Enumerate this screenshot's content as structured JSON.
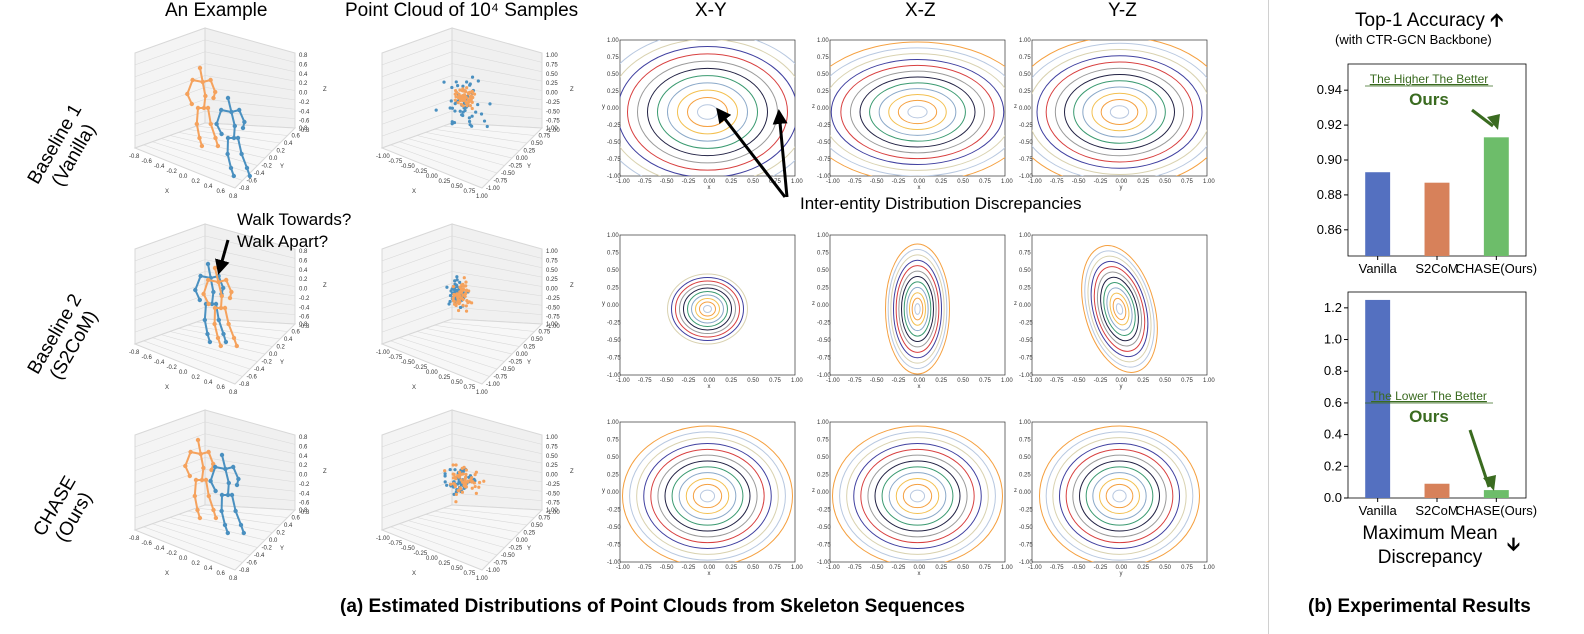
{
  "column_headers": {
    "example": "An Example",
    "pointcloud": "Point Cloud of 10⁴ Samples",
    "xy": "X-Y",
    "xz": "X-Z",
    "yz": "Y-Z"
  },
  "row_labels": [
    {
      "line1": "Baseline 1",
      "line2": "(Vanilla)"
    },
    {
      "line1": "Baseline 2",
      "line2": "(S2CoM)"
    },
    {
      "line1": "CHASE",
      "line2": "(Ours)"
    }
  ],
  "annotations": {
    "walk_1": "Walk Towards?",
    "walk_2": "Walk Apart?",
    "discrepancy": "Inter-entity Distribution Discrepancies",
    "higher_better": "The Higher The Better",
    "lower_better": "The Lower The Better",
    "ours": "Ours"
  },
  "axes3d": {
    "skeleton_ticks": [
      "-0.8",
      "-0.6",
      "-0.4",
      "-0.2",
      "0.0",
      "0.2",
      "0.4",
      "0.6",
      "0.8"
    ],
    "cloud_ticks": [
      "-1.00",
      "-0.75",
      "-0.50",
      "-0.25",
      "0.00",
      "0.25",
      "0.50",
      "0.75",
      "1.00"
    ],
    "x_label": "X",
    "y_label": "Y",
    "z_label": "Z"
  },
  "contour_axes": {
    "ticks": [
      "-1.00",
      "-0.75",
      "-0.50",
      "-0.25",
      "0.00",
      "0.25",
      "0.50",
      "0.75",
      "1.00"
    ],
    "labels": {
      "xy": [
        "x",
        "y"
      ],
      "xz": [
        "x",
        "z"
      ],
      "yz": [
        "y",
        "z"
      ]
    }
  },
  "captions": {
    "left": "(a) Estimated Distributions of Point Clouds from Skeleton Sequences",
    "right": "(b) Experimental Results"
  },
  "top_chart_title": "Top-1 Accuracy",
  "top_chart_subtitle": "(with CTR-GCN Backbone)",
  "bottom_chart_title_1": "Maximum Mean",
  "bottom_chart_title_2": "Discrepancy",
  "chart_data": [
    {
      "type": "bar",
      "title": "Top-1 Accuracy",
      "subtitle": "(with CTR-GCN Backbone)",
      "categories": [
        "Vanilla",
        "S2CoM",
        "CHASE(Ours)"
      ],
      "values": [
        0.893,
        0.887,
        0.913
      ],
      "ylim": [
        0.845,
        0.955
      ],
      "yticks": [
        "0.86",
        "0.88",
        "0.90",
        "0.92",
        "0.94"
      ],
      "colors": [
        "#5470c0",
        "#d7815a",
        "#6dbd6a"
      ]
    },
    {
      "type": "bar",
      "title": "Maximum Mean Discrepancy",
      "categories": [
        "Vanilla",
        "S2CoM",
        "CHASE(Ours)"
      ],
      "values": [
        1.25,
        0.09,
        0.05
      ],
      "ylim": [
        0,
        1.3
      ],
      "yticks": [
        "0.0",
        "0.2",
        "0.4",
        "0.6",
        "0.8",
        "1.0",
        "1.2"
      ],
      "colors": [
        "#5470c0",
        "#d7815a",
        "#6dbd6a"
      ]
    }
  ],
  "colors": {
    "orange": "#f5a25d",
    "blue": "#4a90c0",
    "annotation_green": "#3a6b20"
  }
}
